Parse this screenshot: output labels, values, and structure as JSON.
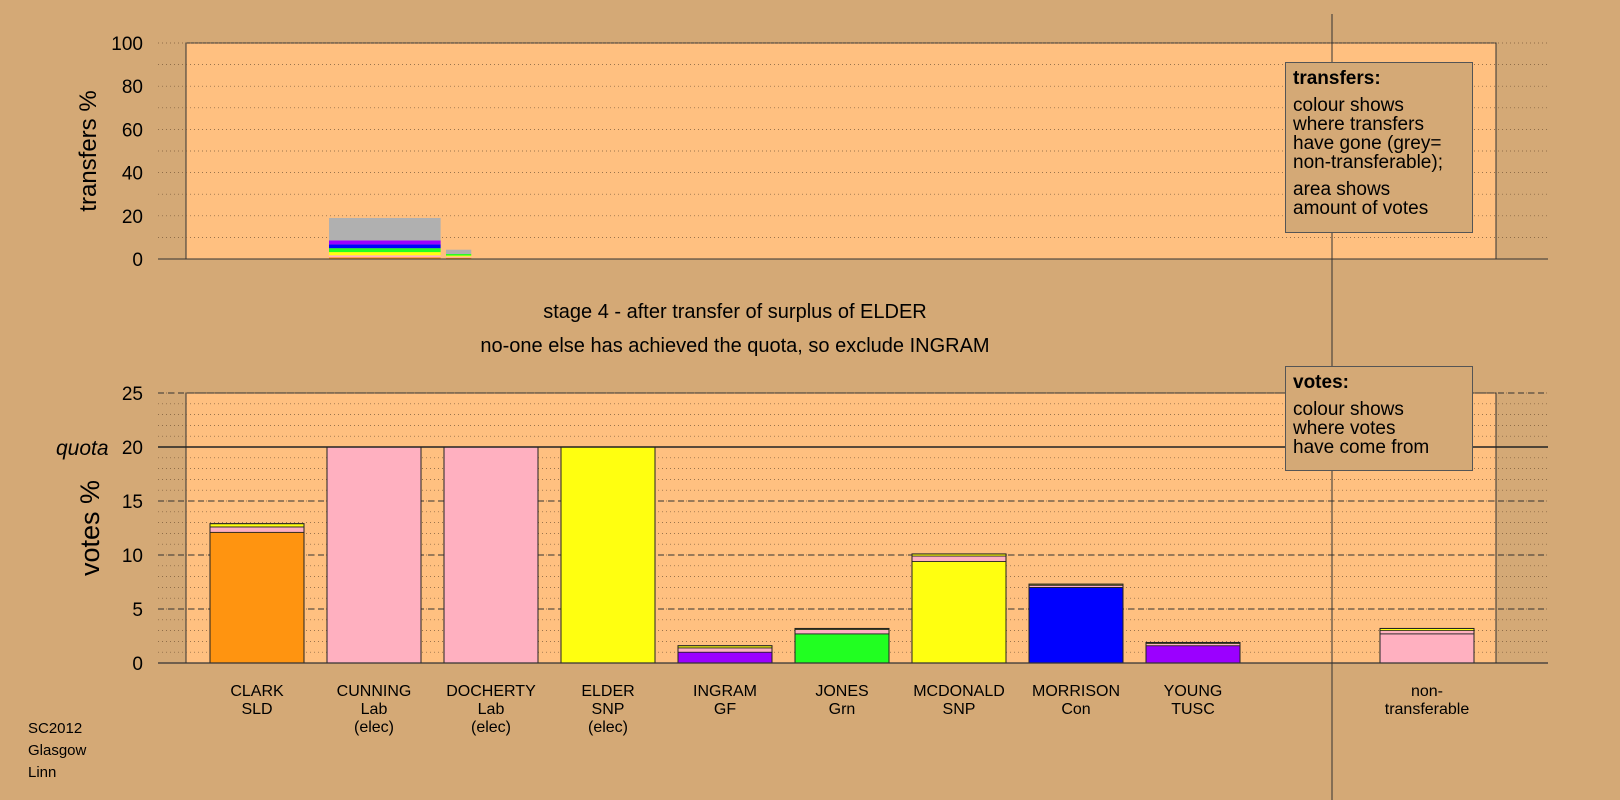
{
  "stage_title": "stage 4 - after transfer of surplus of ELDER",
  "stage_note": "no-one else has achieved the quota, so exclude INGRAM",
  "footer": [
    "SC2012",
    "Glasgow",
    "Linn"
  ],
  "legend_transfers": {
    "title": "transfers:",
    "para1": [
      "colour shows",
      "where transfers",
      "have gone (grey=",
      "non-transferable);"
    ],
    "para2": [
      "area shows",
      "amount of votes"
    ]
  },
  "legend_votes": {
    "title": "votes:",
    "para1": [
      "colour shows",
      "where votes",
      "have come from"
    ]
  },
  "chart_data": [
    {
      "type": "bar",
      "ylabel": "transfers %",
      "ylim": [
        0,
        100
      ],
      "yticks": [
        0,
        20,
        40,
        60,
        80,
        100
      ],
      "grid": true,
      "bars": [
        {
          "column": "CUNNING",
          "segments": [
            {
              "party": "SLD",
              "value": 0.8,
              "color": "#ff9410"
            },
            {
              "party": "Lab",
              "value": 0.9,
              "color": "#ffb0c0"
            },
            {
              "party": "SNP",
              "value": 1.5,
              "color": "#ffff10"
            },
            {
              "party": "Grn",
              "value": 1.8,
              "color": "#21ff21"
            },
            {
              "party": "Con",
              "value": 1.8,
              "color": "#0000ff"
            },
            {
              "party": "TUSC",
              "value": 1.8,
              "color": "#9b00ff"
            },
            {
              "party": "non-transferable",
              "value": 10.4,
              "color": "#b0b0b0"
            }
          ]
        },
        {
          "column": "DOCHERTY",
          "segments": [
            {
              "party": "SLD",
              "value": 0.6,
              "color": "#ff9410"
            },
            {
              "party": "Lab",
              "value": 0.5,
              "color": "#ffb0c0"
            },
            {
              "party": "SNP",
              "value": 0.5,
              "color": "#ffff10"
            },
            {
              "party": "Grn",
              "value": 0.7,
              "color": "#21ff21"
            },
            {
              "party": "non-transferable",
              "value": 2.0,
              "color": "#b0b0b0"
            }
          ]
        }
      ]
    },
    {
      "type": "bar",
      "ylabel": "votes %",
      "ylim": [
        0,
        25
      ],
      "yticks": [
        0,
        5,
        10,
        15,
        20,
        25
      ],
      "quota": 20,
      "quota_label": "quota",
      "grid": true,
      "categories": [
        {
          "name": "CLARK",
          "party": "SLD",
          "status": ""
        },
        {
          "name": "CUNNING",
          "party": "Lab",
          "status": "(elec)"
        },
        {
          "name": "DOCHERTY",
          "party": "Lab",
          "status": "(elec)"
        },
        {
          "name": "ELDER",
          "party": "SNP",
          "status": "(elec)"
        },
        {
          "name": "INGRAM",
          "party": "GF",
          "status": ""
        },
        {
          "name": "JONES",
          "party": "Grn",
          "status": ""
        },
        {
          "name": "MCDONALD",
          "party": "SNP",
          "status": ""
        },
        {
          "name": "MORRISON",
          "party": "Con",
          "status": ""
        },
        {
          "name": "YOUNG",
          "party": "TUSC",
          "status": ""
        },
        {
          "name": "non-",
          "party": "transferable",
          "status": ""
        }
      ],
      "series": [
        {
          "name": "first preferences",
          "values": [
            12.1,
            20.0,
            20.0,
            20.0,
            1.0,
            2.7,
            9.4,
            7.0,
            1.6,
            2.7
          ],
          "colors": [
            "#ff9410",
            "#ffb0c0",
            "#ffb0c0",
            "#ffff10",
            "#9b00ff",
            "#21ff21",
            "#ffff10",
            "#0000ff",
            "#9b00ff",
            "#ffb0c0"
          ]
        },
        {
          "name": "from Lab",
          "values": [
            0.5,
            0,
            0,
            0,
            0.4,
            0.4,
            0.5,
            0.2,
            0.2,
            0.3
          ],
          "color": "#ffb0c0"
        },
        {
          "name": "from SNP",
          "values": [
            0.3,
            0,
            0,
            0,
            0.2,
            0.1,
            0.2,
            0.1,
            0.1,
            0.2
          ],
          "color": "#ffff10"
        }
      ]
    }
  ]
}
